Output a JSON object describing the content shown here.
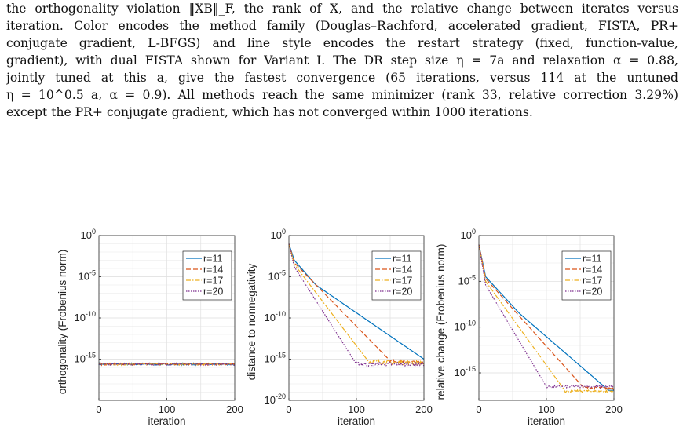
{
  "paragraph": {
    "lines": [
      "the orthogonality violation ‖XB‖_F, the rank of X, and the relative change between iterates versus",
      "iteration. Color encodes the method family (Douglas–Rachford, accelerated gradient, FISTA, PR+",
      "conjugate gradient, L-BFGS) and line style encodes the restart strategy (fixed, function-value,",
      "gradient), with dual FISTA shown for Variant I. The DR step size η = 7a and relaxation α = 0.88,",
      "jointly tuned at this a, give the fastest convergence (65 iterations, versus 114 at the untuned",
      "η = 10^0.5 a, α = 0.9). All methods reach the same minimizer (rank 33, relative correction 3.29%)",
      "except the PR+ conjugate gradient, which has not converged within 1000 iterations."
    ]
  },
  "legend_entries": [
    "r=11",
    "r=14",
    "r=17",
    "r=20"
  ],
  "series_colors": [
    "#0072bd",
    "#d95319",
    "#edb120",
    "#7e2f8e"
  ],
  "series_dash": [
    "",
    "6,3",
    "6,2,1.5,2",
    "1.5,1.5"
  ],
  "chart_data": [
    {
      "type": "line",
      "ylabel": "orthogonality (Frobenius norm)",
      "xlabel": "iteration",
      "xlim": [
        0,
        200
      ],
      "ylim_log10": [
        -20,
        0
      ],
      "yscale": "log",
      "xticks": [
        "0",
        "100",
        "200"
      ],
      "yticks": [
        {
          "base": "10",
          "exp": "0"
        },
        {
          "base": "10",
          "exp": "-5"
        },
        {
          "base": "10",
          "exp": "-10"
        },
        {
          "base": "10",
          "exp": "-15"
        }
      ],
      "grid": true,
      "legend": "top-right",
      "series": [
        {
          "name": "r=11",
          "points": [
            [
              0,
              -15.6
            ],
            [
              200,
              -15.6
            ]
          ],
          "noise": 0.12
        },
        {
          "name": "r=14",
          "points": [
            [
              0,
              -15.6
            ],
            [
              200,
              -15.6
            ]
          ],
          "noise": 0.12
        },
        {
          "name": "r=17",
          "points": [
            [
              0,
              -15.6
            ],
            [
              200,
              -15.6
            ]
          ],
          "noise": 0.12
        },
        {
          "name": "r=20",
          "points": [
            [
              0,
              -15.6
            ],
            [
              200,
              -15.6
            ]
          ],
          "noise": 0.12
        }
      ]
    },
    {
      "type": "line",
      "ylabel": "distance to nonnegativity",
      "xlabel": "iteration",
      "xlim": [
        0,
        200
      ],
      "ylim_log10": [
        -20,
        0
      ],
      "yscale": "log",
      "xticks": [
        "0",
        "100",
        "200"
      ],
      "yticks": [
        {
          "base": "10",
          "exp": "0"
        },
        {
          "base": "10",
          "exp": "-5"
        },
        {
          "base": "10",
          "exp": "-10"
        },
        {
          "base": "10",
          "exp": "-15"
        },
        {
          "base": "10",
          "exp": "-20"
        }
      ],
      "grid": true,
      "legend": "top-right",
      "series": [
        {
          "name": "r=11",
          "points": [
            [
              0,
              -1.0
            ],
            [
              8,
              -3.0
            ],
            [
              40,
              -6.0
            ],
            [
              200,
              -15.0
            ]
          ],
          "noise": 0
        },
        {
          "name": "r=14",
          "points": [
            [
              0,
              -1.0
            ],
            [
              8,
              -3.3
            ],
            [
              150,
              -15.2
            ],
            [
              200,
              -15.4
            ]
          ],
          "noise": 0.15
        },
        {
          "name": "r=17",
          "points": [
            [
              0,
              -1.0
            ],
            [
              8,
              -3.5
            ],
            [
              118,
              -15.3
            ],
            [
              200,
              -15.5
            ]
          ],
          "noise": 0.25
        },
        {
          "name": "r=20",
          "points": [
            [
              0,
              -1.0
            ],
            [
              8,
              -3.8
            ],
            [
              100,
              -15.6
            ],
            [
              200,
              -15.6
            ]
          ],
          "noise": 0.25
        }
      ]
    },
    {
      "type": "line",
      "ylabel": "relative change (Frobenius norm)",
      "xlabel": "iteration",
      "xlim": [
        0,
        200
      ],
      "ylim_log10": [
        -18,
        0
      ],
      "yscale": "log",
      "xticks": [
        "0",
        "100",
        "200"
      ],
      "yticks": [
        {
          "base": "10",
          "exp": "0"
        },
        {
          "base": "10",
          "exp": "-5"
        },
        {
          "base": "10",
          "exp": "-10"
        },
        {
          "base": "10",
          "exp": "-15"
        }
      ],
      "grid": true,
      "legend": "top-right",
      "series": [
        {
          "name": "r=11",
          "points": [
            [
              0,
              -1.0
            ],
            [
              10,
              -4.5
            ],
            [
              60,
              -8.5
            ],
            [
              192,
              -16.9
            ],
            [
              200,
              -16.9
            ]
          ],
          "noise": 0
        },
        {
          "name": "r=14",
          "points": [
            [
              0,
              -1.0
            ],
            [
              10,
              -4.7
            ],
            [
              155,
              -16.6
            ],
            [
              200,
              -16.7
            ]
          ],
          "noise": 0.12
        },
        {
          "name": "r=17",
          "points": [
            [
              0,
              -1.0
            ],
            [
              10,
              -5.0
            ],
            [
              128,
              -17.0
            ],
            [
              200,
              -17.0
            ]
          ],
          "noise": 0.12
        },
        {
          "name": "r=20",
          "points": [
            [
              0,
              -1.0
            ],
            [
              10,
              -5.4
            ],
            [
              100,
              -16.5
            ],
            [
              200,
              -16.5
            ]
          ],
          "noise": 0.12
        }
      ]
    }
  ]
}
